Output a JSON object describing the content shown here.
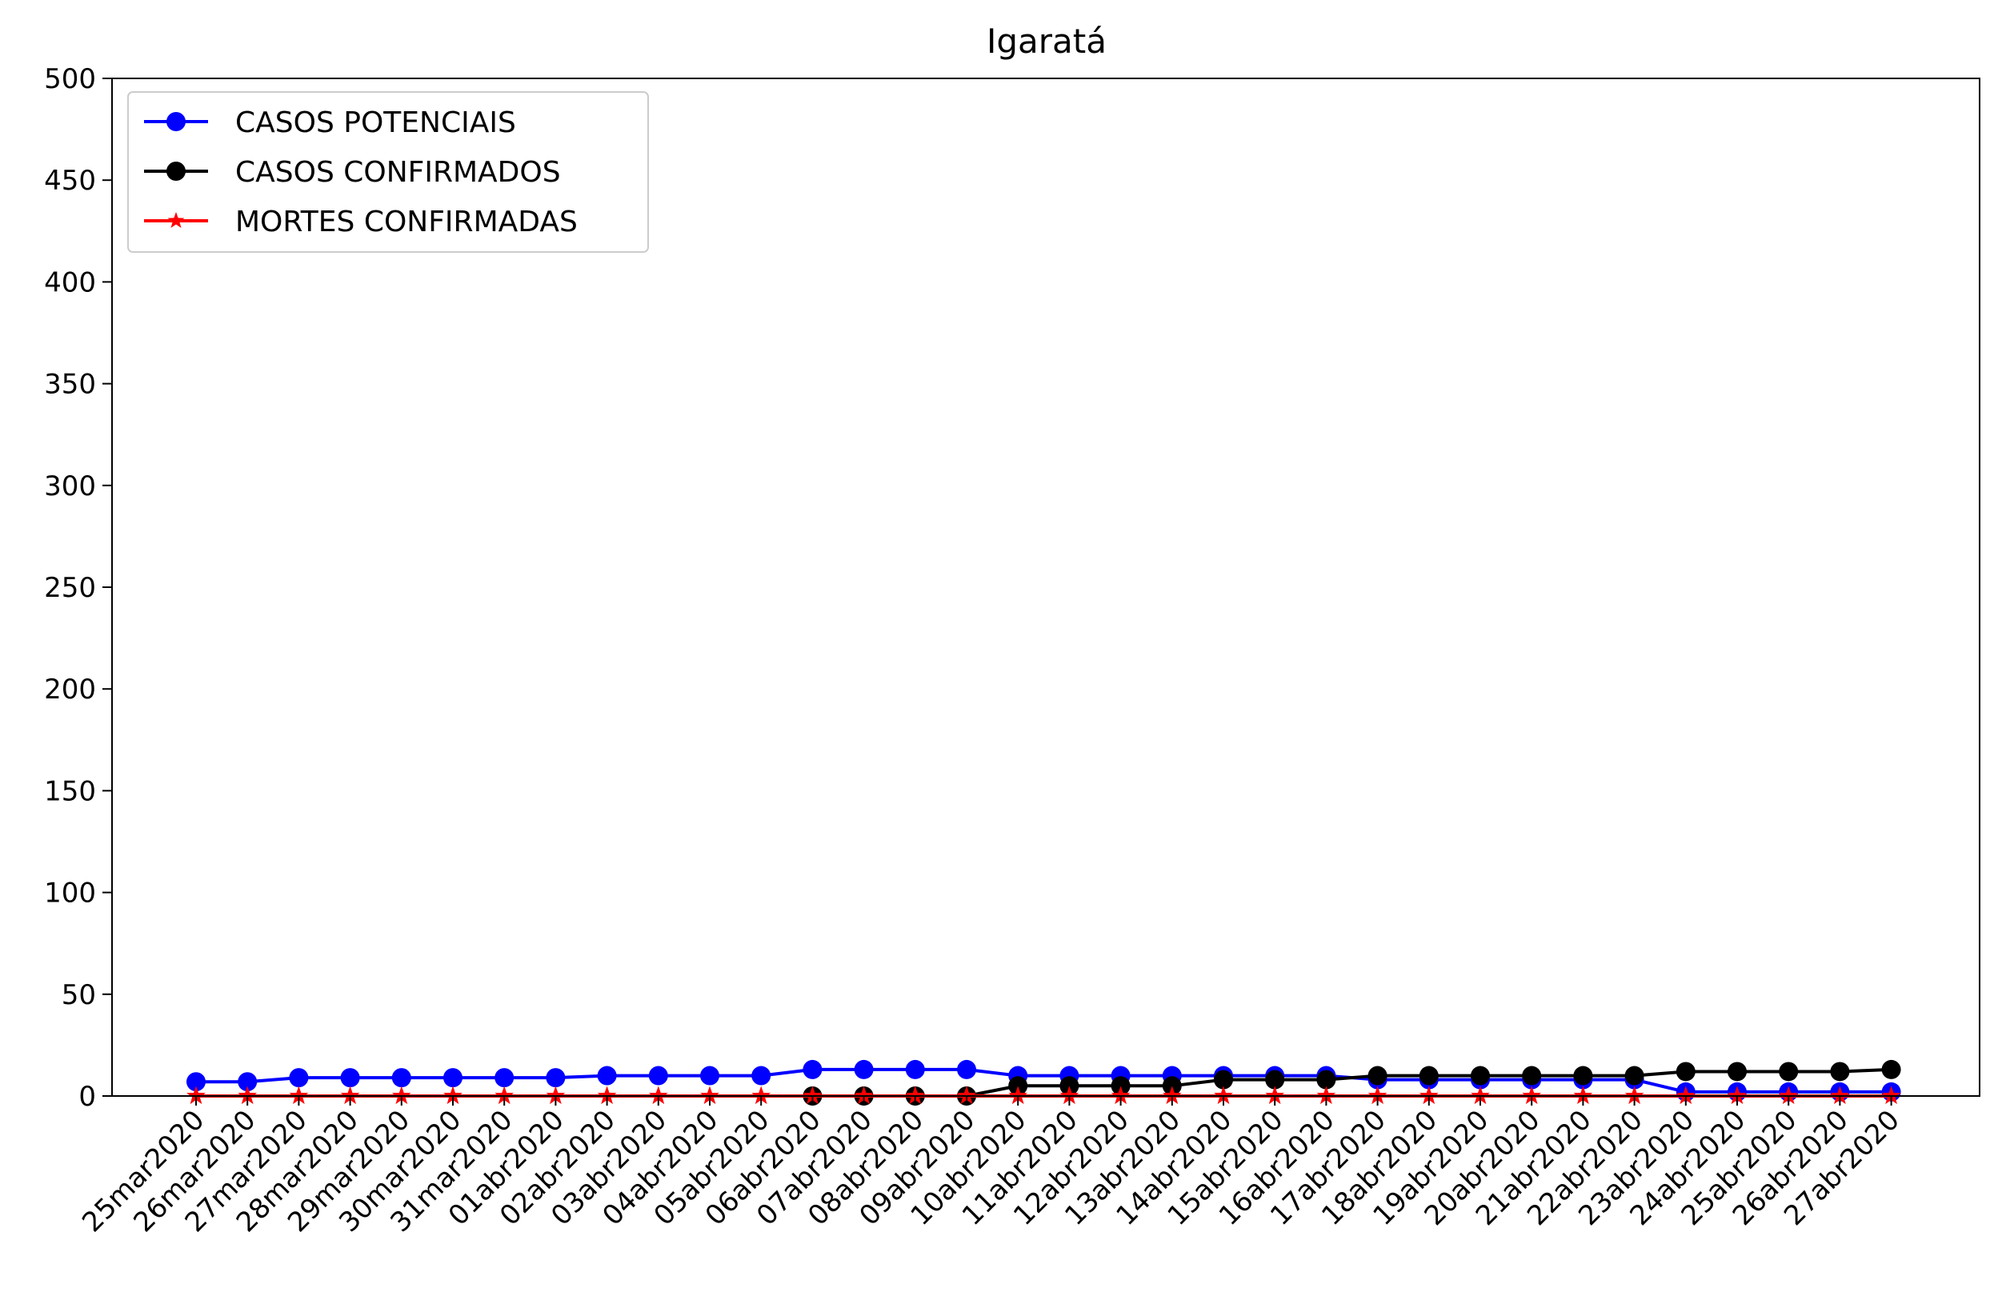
{
  "chart_data": {
    "type": "line",
    "title": "Igaratá",
    "xlabel": "",
    "ylabel": "",
    "ylim": [
      0,
      500
    ],
    "yticks": [
      0,
      50,
      100,
      150,
      200,
      250,
      300,
      350,
      400,
      450,
      500
    ],
    "grid": false,
    "legend_position": "top-left",
    "categories": [
      "25mar2020",
      "26mar2020",
      "27mar2020",
      "28mar2020",
      "29mar2020",
      "30mar2020",
      "31mar2020",
      "01abr2020",
      "02abr2020",
      "03abr2020",
      "04abr2020",
      "05abr2020",
      "06abr2020",
      "07abr2020",
      "08abr2020",
      "09abr2020",
      "10abr2020",
      "11abr2020",
      "12abr2020",
      "13abr2020",
      "14abr2020",
      "15abr2020",
      "16abr2020",
      "17abr2020",
      "18abr2020",
      "19abr2020",
      "20abr2020",
      "21abr2020",
      "22abr2020",
      "23abr2020",
      "24abr2020",
      "25abr2020",
      "26abr2020",
      "27abr2020"
    ],
    "series": [
      {
        "name": "CASOS POTENCIAIS",
        "color": "#0000ff",
        "marker": "circle",
        "values": [
          7,
          7,
          9,
          9,
          9,
          9,
          9,
          9,
          10,
          10,
          10,
          10,
          13,
          13,
          13,
          13,
          10,
          10,
          10,
          10,
          10,
          10,
          10,
          8,
          8,
          8,
          8,
          8,
          8,
          2,
          2,
          2,
          2,
          2
        ]
      },
      {
        "name": "CASOS CONFIRMADOS",
        "color": "#000000",
        "marker": "circle",
        "values": [
          null,
          null,
          null,
          null,
          null,
          null,
          null,
          null,
          null,
          null,
          null,
          null,
          0,
          0,
          0,
          0,
          5,
          5,
          5,
          5,
          8,
          8,
          8,
          10,
          10,
          10,
          10,
          10,
          10,
          12,
          12,
          12,
          12,
          13
        ]
      },
      {
        "name": "MORTES CONFIRMADAS",
        "color": "#ff0000",
        "marker": "star",
        "values": [
          0,
          0,
          0,
          0,
          0,
          0,
          0,
          0,
          0,
          0,
          0,
          0,
          0,
          0,
          0,
          0,
          0,
          0,
          0,
          0,
          0,
          0,
          0,
          0,
          0,
          0,
          0,
          0,
          0,
          0,
          0,
          0,
          0,
          0
        ]
      }
    ]
  }
}
